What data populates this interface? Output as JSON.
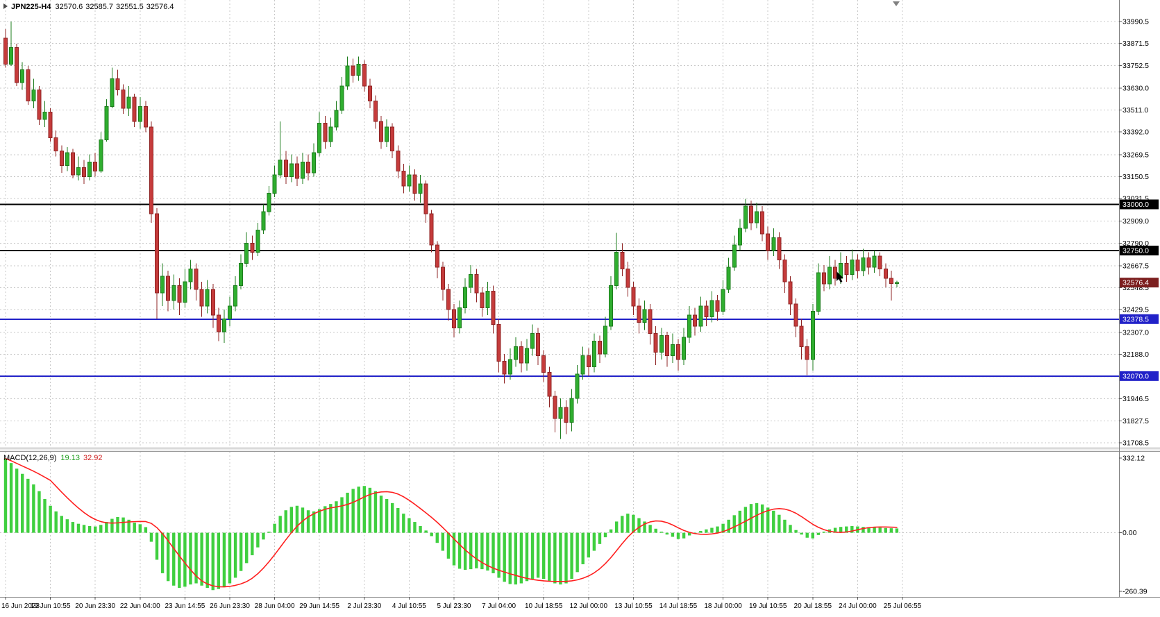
{
  "title": {
    "symbol_period": "JPN225-H4",
    "open": "32570.6",
    "high": "32585.7",
    "low": "32551.5",
    "close": "32576.4"
  },
  "macd_label": {
    "name": "MACD(12,26,9)",
    "value_main": "19.13",
    "value_signal": "32.92"
  },
  "colors": {
    "background": "#ffffff",
    "grid": "#c8c8c8",
    "bull": "#2fae2f",
    "bull_border": "#1e7d1e",
    "bear": "#c53b3b",
    "bear_border": "#8f2424",
    "macd_hist": "#3fcf3f",
    "macd_signal": "#ff1f1f",
    "line_black": "#000000",
    "line_blue": "#2121c8",
    "badge_current": "#7c1f1f",
    "axis_text": "#000000"
  },
  "chart_data": {
    "type": "candlestick",
    "symbol": "JPN225",
    "timeframe": "H4",
    "title": "JPN225-H4 32570.6 32585.7 32551.5 32576.4",
    "price_axis": {
      "top_price": 33990.5,
      "bottom_price": 31708.5,
      "ticks": [
        33990.5,
        33871.5,
        33752.5,
        33630.0,
        33511.0,
        33392.0,
        33269.5,
        33150.5,
        33031.5,
        32909.0,
        32790.0,
        32667.5,
        32548.5,
        32429.5,
        32307.0,
        32188.0,
        32065.5,
        31946.5,
        31827.5,
        31708.5
      ]
    },
    "time_axis": {
      "bars_per_label": 8,
      "labels": [
        "16 Jun 2023",
        "19 Jun 10:55",
        "20 Jun 23:30",
        "22 Jun 04:00",
        "23 Jun 14:55",
        "26 Jun 23:30",
        "28 Jun 04:00",
        "29 Jun 14:55",
        "2 Jul 23:30",
        "4 Jul 10:55",
        "5 Jul 23:30",
        "7 Jul 04:00",
        "10 Jul 18:55",
        "12 Jul 00:00",
        "13 Jul 10:55",
        "14 Jul 18:55",
        "18 Jul 00:00",
        "19 Jul 10:55",
        "20 Jul 18:55",
        "24 Jul 00:00",
        "25 Jul 06:55"
      ]
    },
    "hlines": [
      {
        "price": 33000.0,
        "label": "33000.0",
        "color": "#000000"
      },
      {
        "price": 32750.0,
        "label": "32750.0",
        "color": "#000000"
      },
      {
        "price": 32378.5,
        "label": "32378.5",
        "color": "#2121c8"
      },
      {
        "price": 32070.0,
        "label": "32070.0",
        "color": "#2121c8"
      }
    ],
    "current_price": {
      "value": 32576.4,
      "label": "32576.4",
      "color": "#7c1f1f"
    },
    "candles": [
      [
        33900,
        33950,
        33740,
        33760
      ],
      [
        33760,
        33990,
        33750,
        33850
      ],
      [
        33850,
        33870,
        33640,
        33660
      ],
      [
        33660,
        33770,
        33620,
        33730
      ],
      [
        33730,
        33750,
        33540,
        33560
      ],
      [
        33560,
        33680,
        33520,
        33620
      ],
      [
        33620,
        33640,
        33430,
        33460
      ],
      [
        33460,
        33560,
        33420,
        33500
      ],
      [
        33500,
        33520,
        33340,
        33360
      ],
      [
        33360,
        33400,
        33260,
        33290
      ],
      [
        33290,
        33320,
        33170,
        33210
      ],
      [
        33210,
        33310,
        33180,
        33280
      ],
      [
        33280,
        33300,
        33140,
        33160
      ],
      [
        33160,
        33260,
        33130,
        33200
      ],
      [
        33200,
        33240,
        33110,
        33150
      ],
      [
        33150,
        33270,
        33130,
        33230
      ],
      [
        33230,
        33280,
        33150,
        33180
      ],
      [
        33180,
        33390,
        33170,
        33350
      ],
      [
        33350,
        33570,
        33340,
        33530
      ],
      [
        33530,
        33740,
        33520,
        33680
      ],
      [
        33680,
        33730,
        33590,
        33620
      ],
      [
        33620,
        33650,
        33490,
        33520
      ],
      [
        33520,
        33640,
        33480,
        33580
      ],
      [
        33580,
        33600,
        33420,
        33450
      ],
      [
        33450,
        33580,
        33410,
        33530
      ],
      [
        33530,
        33560,
        33390,
        33420
      ],
      [
        33420,
        33450,
        32900,
        32950
      ],
      [
        32950,
        32980,
        32380,
        32520
      ],
      [
        32520,
        32680,
        32450,
        32610
      ],
      [
        32610,
        32640,
        32420,
        32480
      ],
      [
        32480,
        32620,
        32430,
        32560
      ],
      [
        32560,
        32600,
        32400,
        32470
      ],
      [
        32470,
        32650,
        32440,
        32580
      ],
      [
        32580,
        32700,
        32540,
        32650
      ],
      [
        32650,
        32680,
        32480,
        32540
      ],
      [
        32540,
        32580,
        32390,
        32450
      ],
      [
        32450,
        32590,
        32410,
        32540
      ],
      [
        32540,
        32570,
        32330,
        32400
      ],
      [
        32400,
        32440,
        32260,
        32310
      ],
      [
        32310,
        32430,
        32250,
        32380
      ],
      [
        32380,
        32500,
        32340,
        32450
      ],
      [
        32450,
        32610,
        32420,
        32560
      ],
      [
        32560,
        32730,
        32540,
        32680
      ],
      [
        32680,
        32850,
        32660,
        32790
      ],
      [
        32790,
        32830,
        32700,
        32740
      ],
      [
        32740,
        32900,
        32720,
        32860
      ],
      [
        32860,
        33000,
        32840,
        32960
      ],
      [
        32960,
        33100,
        32940,
        33060
      ],
      [
        33060,
        33210,
        33040,
        33160
      ],
      [
        33160,
        33450,
        33140,
        33240
      ],
      [
        33240,
        33290,
        33110,
        33150
      ],
      [
        33150,
        33270,
        33120,
        33220
      ],
      [
        33220,
        33260,
        33100,
        33140
      ],
      [
        33140,
        33280,
        33110,
        33230
      ],
      [
        33230,
        33270,
        33130,
        33170
      ],
      [
        33170,
        33330,
        33150,
        33280
      ],
      [
        33280,
        33500,
        33260,
        33440
      ],
      [
        33440,
        33480,
        33300,
        33340
      ],
      [
        33340,
        33470,
        33310,
        33420
      ],
      [
        33420,
        33560,
        33400,
        33510
      ],
      [
        33510,
        33690,
        33490,
        33640
      ],
      [
        33640,
        33800,
        33620,
        33750
      ],
      [
        33750,
        33790,
        33660,
        33700
      ],
      [
        33700,
        33800,
        33670,
        33760
      ],
      [
        33760,
        33780,
        33610,
        33640
      ],
      [
        33640,
        33680,
        33520,
        33560
      ],
      [
        33560,
        33590,
        33410,
        33450
      ],
      [
        33450,
        33480,
        33300,
        33340
      ],
      [
        33340,
        33460,
        33310,
        33420
      ],
      [
        33420,
        33440,
        33250,
        33290
      ],
      [
        33290,
        33320,
        33140,
        33180
      ],
      [
        33180,
        33220,
        33060,
        33100
      ],
      [
        33100,
        33210,
        33070,
        33160
      ],
      [
        33160,
        33190,
        33020,
        33060
      ],
      [
        33060,
        33160,
        33010,
        33110
      ],
      [
        33110,
        33130,
        32900,
        32950
      ],
      [
        32950,
        32970,
        32740,
        32780
      ],
      [
        32780,
        32800,
        32600,
        32660
      ],
      [
        32660,
        32690,
        32480,
        32540
      ],
      [
        32540,
        32570,
        32370,
        32430
      ],
      [
        32430,
        32460,
        32280,
        32330
      ],
      [
        32330,
        32480,
        32300,
        32440
      ],
      [
        32440,
        32600,
        32410,
        32550
      ],
      [
        32550,
        32670,
        32520,
        32620
      ],
      [
        32620,
        32650,
        32470,
        32520
      ],
      [
        32520,
        32550,
        32390,
        32440
      ],
      [
        32440,
        32580,
        32400,
        32530
      ],
      [
        32530,
        32560,
        32300,
        32350
      ],
      [
        32350,
        32380,
        32090,
        32150
      ],
      [
        32150,
        32190,
        32030,
        32080
      ],
      [
        32080,
        32220,
        32050,
        32160
      ],
      [
        32160,
        32280,
        32120,
        32230
      ],
      [
        32230,
        32260,
        32090,
        32140
      ],
      [
        32140,
        32270,
        32100,
        32220
      ],
      [
        32220,
        32350,
        32180,
        32300
      ],
      [
        32300,
        32330,
        32130,
        32180
      ],
      [
        32180,
        32210,
        32040,
        32090
      ],
      [
        32090,
        32120,
        31900,
        31960
      ],
      [
        31960,
        31990,
        31765,
        31840
      ],
      [
        31840,
        31950,
        31730,
        31900
      ],
      [
        31900,
        31940,
        31755,
        31820
      ],
      [
        31820,
        32000,
        31770,
        31950
      ],
      [
        31950,
        32130,
        31920,
        32080
      ],
      [
        32080,
        32230,
        32050,
        32180
      ],
      [
        32180,
        32220,
        32070,
        32120
      ],
      [
        32120,
        32300,
        32090,
        32260
      ],
      [
        32260,
        32290,
        32140,
        32190
      ],
      [
        32190,
        32390,
        32170,
        32340
      ],
      [
        32340,
        32610,
        32320,
        32560
      ],
      [
        32560,
        32845,
        32540,
        32740
      ],
      [
        32740,
        32790,
        32610,
        32650
      ],
      [
        32650,
        32690,
        32500,
        32550
      ],
      [
        32550,
        32580,
        32400,
        32450
      ],
      [
        32450,
        32490,
        32300,
        32360
      ],
      [
        32360,
        32480,
        32320,
        32430
      ],
      [
        32430,
        32460,
        32240,
        32300
      ],
      [
        32300,
        32340,
        32130,
        32200
      ],
      [
        32200,
        32330,
        32160,
        32290
      ],
      [
        32290,
        32310,
        32120,
        32180
      ],
      [
        32180,
        32300,
        32140,
        32240
      ],
      [
        32240,
        32270,
        32100,
        32160
      ],
      [
        32160,
        32330,
        32130,
        32280
      ],
      [
        32280,
        32450,
        32250,
        32400
      ],
      [
        32400,
        32440,
        32290,
        32340
      ],
      [
        32340,
        32500,
        32310,
        32450
      ],
      [
        32450,
        32480,
        32340,
        32390
      ],
      [
        32390,
        32530,
        32360,
        32480
      ],
      [
        32480,
        32510,
        32370,
        32420
      ],
      [
        32420,
        32590,
        32400,
        32540
      ],
      [
        32540,
        32710,
        32520,
        32660
      ],
      [
        32660,
        32830,
        32640,
        32780
      ],
      [
        32780,
        32920,
        32750,
        32870
      ],
      [
        32870,
        33030,
        32850,
        32990
      ],
      [
        32990,
        33020,
        32860,
        32900
      ],
      [
        32900,
        33010,
        32870,
        32960
      ],
      [
        32960,
        32990,
        32800,
        32840
      ],
      [
        32840,
        32880,
        32700,
        32750
      ],
      [
        32750,
        32870,
        32720,
        32820
      ],
      [
        32820,
        32850,
        32650,
        32700
      ],
      [
        32700,
        32730,
        32520,
        32580
      ],
      [
        32580,
        32610,
        32400,
        32460
      ],
      [
        32460,
        32490,
        32280,
        32340
      ],
      [
        32340,
        32380,
        32160,
        32230
      ],
      [
        32230,
        32270,
        32075,
        32160
      ],
      [
        32160,
        32460,
        32100,
        32420
      ],
      [
        32420,
        32680,
        32400,
        32630
      ],
      [
        32630,
        32670,
        32530,
        32570
      ],
      [
        32570,
        32720,
        32540,
        32660
      ],
      [
        32660,
        32700,
        32560,
        32600
      ],
      [
        32600,
        32740,
        32570,
        32680
      ],
      [
        32680,
        32720,
        32580,
        32620
      ],
      [
        32620,
        32755,
        32590,
        32700
      ],
      [
        32700,
        32730,
        32600,
        32640
      ],
      [
        32640,
        32760,
        32610,
        32710
      ],
      [
        32710,
        32740,
        32620,
        32660
      ],
      [
        32660,
        32750,
        32630,
        32720
      ],
      [
        32720,
        32740,
        32610,
        32650
      ],
      [
        32650,
        32680,
        32550,
        32600
      ],
      [
        32600,
        32640,
        32480,
        32570.6
      ],
      [
        32570.6,
        32585.7,
        32551.5,
        32576.4
      ]
    ],
    "macd": {
      "name": "MACD(12,26,9)",
      "value": "19.13",
      "signal": "32.92",
      "signal_period": 9,
      "scale_max": 332.12,
      "scale_min": -260.39,
      "scale_labels": [
        "332.12",
        "0.00",
        "-260.39"
      ],
      "hist": [
        330,
        310,
        285,
        262,
        240,
        215,
        185,
        150,
        120,
        95,
        75,
        60,
        48,
        40,
        35,
        30,
        28,
        35,
        48,
        62,
        70,
        68,
        58,
        45,
        38,
        25,
        -40,
        -120,
        -180,
        -215,
        -235,
        -245,
        -240,
        -230,
        -225,
        -235,
        -245,
        -255,
        -250,
        -240,
        -225,
        -200,
        -170,
        -135,
        -100,
        -65,
        -30,
        5,
        40,
        75,
        100,
        115,
        120,
        112,
        100,
        95,
        105,
        118,
        128,
        140,
        158,
        178,
        195,
        205,
        208,
        200,
        185,
        165,
        150,
        132,
        110,
        85,
        65,
        48,
        30,
        10,
        -15,
        -45,
        -80,
        -115,
        -145,
        -160,
        -165,
        -162,
        -158,
        -162,
        -168,
        -180,
        -200,
        -218,
        -228,
        -230,
        -225,
        -215,
        -205,
        -200,
        -205,
        -215,
        -225,
        -230,
        -225,
        -205,
        -175,
        -140,
        -110,
        -80,
        -50,
        -20,
        15,
        50,
        75,
        85,
        80,
        65,
        50,
        35,
        18,
        5,
        -8,
        -18,
        -28,
        -25,
        -12,
        -2,
        8,
        15,
        22,
        28,
        40,
        58,
        78,
        98,
        115,
        128,
        132,
        126,
        112,
        98,
        80,
        58,
        35,
        12,
        -8,
        -22,
        -25,
        -10,
        5,
        15,
        22,
        26,
        28,
        30,
        28,
        26,
        25,
        24,
        23,
        21,
        20,
        19.13
      ]
    }
  }
}
